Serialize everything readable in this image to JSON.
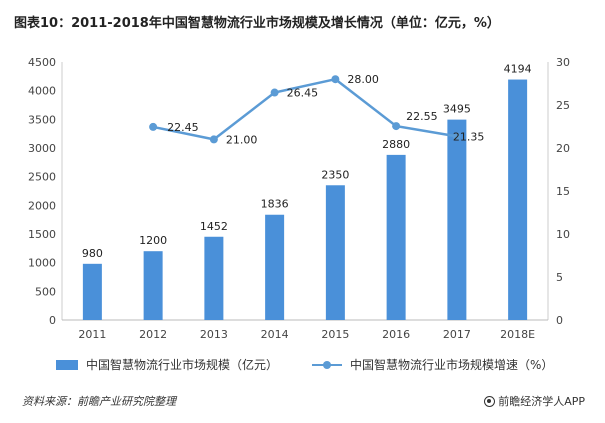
{
  "chart_data": {
    "type": "bar",
    "title": "图表10：2011-2018年中国智慧物流行业市场规模及增长情况（单位：亿元，%）",
    "categories": [
      "2011",
      "2012",
      "2013",
      "2014",
      "2015",
      "2016",
      "2017",
      "2018E"
    ],
    "series": [
      {
        "name": "中国智慧物流行业市场规模（亿元）",
        "type": "bar",
        "axis": "left",
        "values": [
          980,
          1200,
          1452,
          1836,
          2350,
          2880,
          3495,
          4194
        ],
        "labels": [
          "980",
          "1200",
          "1452",
          "1836",
          "2350",
          "2880",
          "3495",
          "4194"
        ],
        "color": "#4a90d9"
      },
      {
        "name": "中国智慧物流行业市场规模增速（%）",
        "type": "line",
        "axis": "right",
        "values": [
          null,
          22.45,
          21.0,
          26.45,
          28.0,
          22.55,
          21.35,
          null
        ],
        "labels": [
          null,
          "22.45",
          "21.00",
          "26.45",
          "28.00",
          "22.55",
          "21.35",
          null
        ],
        "color": "#5b9bd5"
      }
    ],
    "y_left": {
      "min": 0,
      "max": 4500,
      "ticks": [
        "0",
        "500",
        "1000",
        "1500",
        "2000",
        "2500",
        "3000",
        "3500",
        "4000",
        "4500"
      ]
    },
    "y_right": {
      "min": 0,
      "max": 30,
      "ticks": [
        "0",
        "5",
        "10",
        "15",
        "20",
        "25",
        "30"
      ]
    },
    "grid": false,
    "legend_position": "bottom"
  },
  "footer": {
    "source": "资料来源：前瞻产业研究院整理",
    "brand": "前瞻经济学人APP"
  }
}
